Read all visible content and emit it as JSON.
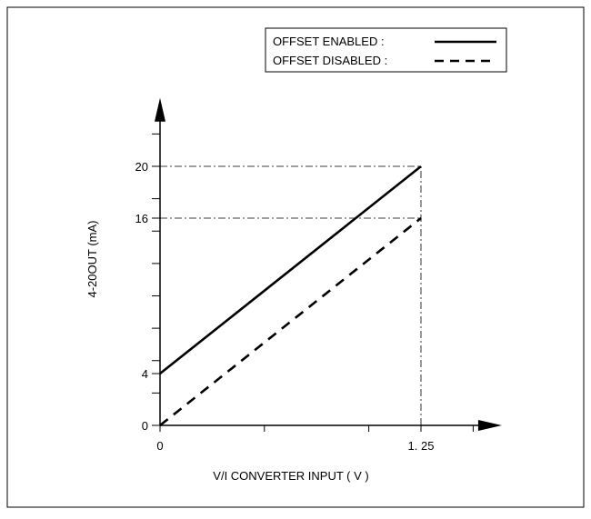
{
  "chart_data": {
    "type": "line",
    "title": "",
    "xlabel": "V/I CONVERTER INPUT ( V )",
    "ylabel": "4-20OUT (mA)",
    "xlim": [
      0,
      1.62
    ],
    "ylim": [
      0,
      25
    ],
    "x_ticks": [
      0,
      0.5,
      1,
      1.25,
      1.5
    ],
    "x_tick_labels": [
      {
        "value": 0,
        "label": "0"
      },
      {
        "value": 1.25,
        "label": "1. 25"
      }
    ],
    "y_ticks": [
      0,
      2.5,
      4,
      5,
      7.5,
      10,
      12.5,
      15,
      16,
      17.5,
      20,
      22.5
    ],
    "y_tick_labels": [
      {
        "value": 0,
        "label": "0"
      },
      {
        "value": 4,
        "label": "4"
      },
      {
        "value": 16,
        "label": "16"
      },
      {
        "value": 20,
        "label": "20"
      }
    ],
    "reference_lines": [
      {
        "axis": "y",
        "value": 20,
        "x_to": 1.25
      },
      {
        "axis": "y",
        "value": 16,
        "x_to": 1.25
      },
      {
        "axis": "x",
        "value": 1.25,
        "y_to": 20
      }
    ],
    "series": [
      {
        "name": "OFFSET ENABLED :",
        "style": "solid",
        "x": [
          0,
          1.25
        ],
        "y": [
          4,
          20
        ]
      },
      {
        "name": "OFFSET DISABLED :",
        "style": "dashed",
        "x": [
          0,
          1.25
        ],
        "y": [
          0,
          16
        ]
      }
    ],
    "grid": false,
    "legend_position": "top-right",
    "colors": {
      "line": "#000000",
      "background": "#ffffff"
    }
  }
}
